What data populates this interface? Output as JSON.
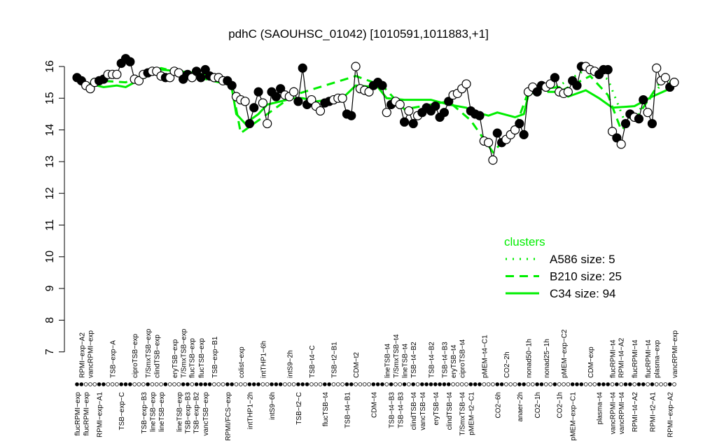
{
  "chart_data": {
    "type": "line",
    "title": "pdhC (SAOUHSC_01042) [1010591,1011883,+1]",
    "xlabel": "",
    "ylabel": "",
    "ylim": [
      7,
      16
    ],
    "yticks": [
      7,
      8,
      9,
      10,
      11,
      12,
      13,
      14,
      15,
      16
    ],
    "grid": false,
    "points": [
      [
        15.65,
        1
      ],
      [
        15.55,
        1
      ],
      [
        15.4,
        0
      ],
      [
        15.3,
        0
      ],
      [
        15.5,
        0
      ],
      [
        15.55,
        1
      ],
      [
        15.6,
        1
      ],
      [
        15.75,
        0
      ],
      [
        15.75,
        0
      ],
      [
        15.75,
        0
      ],
      [
        16.1,
        1
      ],
      [
        16.25,
        1
      ],
      [
        16.15,
        1
      ],
      [
        15.6,
        0
      ],
      [
        15.55,
        0
      ],
      [
        15.75,
        0
      ],
      [
        15.8,
        1
      ],
      [
        15.85,
        0
      ],
      [
        15.85,
        0
      ],
      [
        15.7,
        0
      ],
      [
        15.65,
        1
      ],
      [
        15.65,
        0
      ],
      [
        15.85,
        0
      ],
      [
        15.8,
        0
      ],
      [
        15.6,
        1
      ],
      [
        15.75,
        1
      ],
      [
        15.65,
        0
      ],
      [
        15.85,
        1
      ],
      [
        15.65,
        1
      ],
      [
        15.9,
        1
      ],
      [
        15.7,
        1
      ],
      [
        15.65,
        0
      ],
      [
        15.65,
        0
      ],
      [
        15.55,
        0
      ],
      [
        15.55,
        1
      ],
      [
        15.4,
        1
      ],
      [
        15.05,
        0
      ],
      [
        14.95,
        0
      ],
      [
        14.9,
        0
      ],
      [
        14.2,
        1
      ],
      [
        14.7,
        1
      ],
      [
        15.2,
        1
      ],
      [
        14.85,
        0
      ],
      [
        14.2,
        0
      ],
      [
        15.2,
        1
      ],
      [
        15.05,
        1
      ],
      [
        15.3,
        1
      ],
      [
        15.1,
        0
      ],
      [
        15.05,
        0
      ],
      [
        15.2,
        0
      ],
      [
        14.9,
        1
      ],
      [
        15.95,
        1
      ],
      [
        14.8,
        1
      ],
      [
        14.95,
        0
      ],
      [
        14.75,
        0
      ],
      [
        14.6,
        0
      ],
      [
        14.85,
        1
      ],
      [
        14.9,
        1
      ],
      [
        14.95,
        0
      ],
      [
        15.0,
        0
      ],
      [
        15.0,
        0
      ],
      [
        14.5,
        1
      ],
      [
        14.45,
        1
      ],
      [
        16.0,
        0
      ],
      [
        15.3,
        0
      ],
      [
        15.25,
        0
      ],
      [
        15.2,
        0
      ],
      [
        15.4,
        1
      ],
      [
        15.5,
        1
      ],
      [
        15.4,
        1
      ],
      [
        14.55,
        0
      ],
      [
        14.8,
        1
      ],
      [
        14.9,
        0
      ],
      [
        14.8,
        0
      ],
      [
        14.25,
        1
      ],
      [
        14.6,
        0
      ],
      [
        14.2,
        1
      ],
      [
        14.45,
        0
      ],
      [
        14.55,
        1
      ],
      [
        14.7,
        1
      ],
      [
        14.6,
        1
      ],
      [
        14.75,
        1
      ],
      [
        14.4,
        1
      ],
      [
        14.55,
        1
      ],
      [
        14.9,
        1
      ],
      [
        15.1,
        0
      ],
      [
        15.15,
        0
      ],
      [
        15.3,
        0
      ],
      [
        15.45,
        0
      ],
      [
        14.6,
        1
      ],
      [
        14.5,
        1
      ],
      [
        14.45,
        1
      ],
      [
        13.65,
        0
      ],
      [
        13.6,
        0
      ],
      [
        13.05,
        0
      ],
      [
        13.9,
        1
      ],
      [
        13.6,
        1
      ],
      [
        13.7,
        0
      ],
      [
        13.85,
        0
      ],
      [
        14.0,
        0
      ],
      [
        14.2,
        1
      ],
      [
        13.85,
        1
      ],
      [
        15.2,
        0
      ],
      [
        15.35,
        0
      ],
      [
        15.2,
        1
      ],
      [
        15.4,
        1
      ],
      [
        15.35,
        0
      ],
      [
        15.45,
        0
      ],
      [
        15.65,
        1
      ],
      [
        15.2,
        0
      ],
      [
        15.15,
        0
      ],
      [
        15.2,
        0
      ],
      [
        15.55,
        1
      ],
      [
        15.4,
        1
      ],
      [
        16.0,
        1
      ],
      [
        16.0,
        0
      ],
      [
        15.9,
        0
      ],
      [
        15.85,
        0
      ],
      [
        15.75,
        1
      ],
      [
        15.9,
        1
      ],
      [
        15.9,
        1
      ],
      [
        13.95,
        0
      ],
      [
        13.75,
        1
      ],
      [
        13.55,
        0
      ],
      [
        14.2,
        1
      ],
      [
        14.5,
        1
      ],
      [
        14.4,
        0
      ],
      [
        14.35,
        1
      ],
      [
        14.95,
        1
      ],
      [
        14.55,
        0
      ],
      [
        14.2,
        1
      ],
      [
        15.95,
        0
      ],
      [
        15.55,
        0
      ],
      [
        15.65,
        0
      ],
      [
        15.35,
        1
      ],
      [
        15.5,
        0
      ]
    ],
    "series": [
      {
        "name": "C34 size: 94",
        "style": "solid",
        "x": [
          1,
          7,
          10,
          12,
          14,
          20,
          28,
          34,
          36,
          37,
          39,
          42,
          44,
          50,
          52,
          55,
          61,
          64,
          69,
          71,
          75,
          81,
          85,
          89,
          90,
          94,
          96,
          100,
          102,
          103,
          106,
          110,
          112,
          116,
          119,
          122,
          127,
          131,
          135
        ],
        "values": [
          15.55,
          15.35,
          15.4,
          15.35,
          15.5,
          15.9,
          15.8,
          15.6,
          15.3,
          14.5,
          14.2,
          14.5,
          14.8,
          15.0,
          15.0,
          14.9,
          15.0,
          15.4,
          15.35,
          15.0,
          14.95,
          14.95,
          14.8,
          14.7,
          14.6,
          14.45,
          14.55,
          14.4,
          14.5,
          15.1,
          15.3,
          15.35,
          15.05,
          15.25,
          15.0,
          14.7,
          14.75,
          15.05,
          15.3
        ]
      },
      {
        "name": "B210 size: 25",
        "style": "dashed",
        "x": [
          1,
          12,
          20,
          36,
          38,
          42,
          50,
          64,
          70,
          75,
          85,
          90,
          95,
          100,
          103,
          110,
          117,
          121,
          124,
          128,
          133,
          136
        ],
        "values": [
          15.6,
          15.5,
          15.95,
          15.4,
          13.9,
          14.3,
          15.1,
          15.7,
          15.4,
          14.65,
          14.9,
          14.3,
          13.3,
          14.05,
          15.2,
          15.2,
          15.7,
          15.1,
          14.0,
          14.5,
          15.55,
          15.5
        ]
      },
      {
        "name": "A586 size: 5",
        "style": "dotted",
        "x": [
          103,
          110,
          116,
          121,
          125,
          130,
          134
        ],
        "values": [
          15.3,
          15.4,
          15.9,
          15.6,
          14.2,
          14.9,
          15.6
        ]
      }
    ],
    "legend": {
      "title": "clusters",
      "placement": "right",
      "order": [
        "A586 size: 5",
        "B210 size: 25",
        "C34 size: 94"
      ]
    },
    "xlabels_top": [
      [
        "RPMI−exp−A2",
        2
      ],
      [
        "vancRPMI−exp",
        3
      ],
      [
        "TSB−exp−A",
        9
      ],
      [
        "ciproTSB−exp",
        14
      ],
      [
        "T/SmxTSB−exp",
        17
      ],
      [
        "clindTSB−exp",
        19
      ],
      [
        "eryTSB−exp",
        23
      ],
      [
        "T/SmxTSB−exp",
        25
      ],
      [
        "flucTSB−exp",
        26
      ],
      [
        "flucTSB−exp",
        29
      ],
      [
        "TSB−exp−B1",
        32
      ],
      [
        "colist−exp",
        38
      ],
      [
        "intTHP1−6h",
        43
      ],
      [
        "intS9−2h",
        49
      ],
      [
        "TSB−t4−C",
        54
      ],
      [
        "TSB−t2−B1",
        59
      ],
      [
        "CDM−t2",
        64
      ],
      [
        "lineTSB−t4",
        71
      ],
      [
        "T/SmxTSB−t4",
        73
      ],
      [
        "lineTSB−t4",
        75
      ],
      [
        "TSB−t4−B2",
        77
      ],
      [
        "TSB−t4−B2",
        81
      ],
      [
        "TSB−t4−B3",
        84
      ],
      [
        "eryTSB−t4",
        86
      ],
      [
        "ciproTSB−t4",
        88
      ],
      [
        "pMEM−t4−C1",
        93
      ],
      [
        "CO2−2h",
        98
      ],
      [
        "nonad50−1h",
        103
      ],
      [
        "nonad25−1h",
        107
      ],
      [
        "pMEM−exp−C2",
        111
      ],
      [
        "CDM−exp",
        117
      ],
      [
        "flucRPMI−t4",
        122
      ],
      [
        "RPMI−t4−A2",
        123
      ],
      [
        "flucRPMI−t4",
        127
      ],
      [
        "flucRPMI−t4",
        130
      ],
      [
        "plasma−exp",
        132
      ],
      [
        "vancRPMI−exp",
        136
      ]
    ],
    "xlabels_bottom": [
      [
        "flucRPMI−exp",
        1
      ],
      [
        "flucRPMI−exp",
        3
      ],
      [
        "RPMI−exp−A1",
        6
      ],
      [
        "TSB−exp−C",
        11
      ],
      [
        "TSB−exp−B3",
        16
      ],
      [
        "lineTSB−exp",
        18
      ],
      [
        "lineTSB−exp",
        20
      ],
      [
        "lineTSB−exp",
        24
      ],
      [
        "TSB−exp−B3",
        25
      ],
      [
        "TSB−exp−B2",
        27
      ],
      [
        "vancTSB−exp",
        30
      ],
      [
        "RPMI/FCS−exp",
        35
      ],
      [
        "intTHP1−2h",
        40
      ],
      [
        "intS9−6h",
        45
      ],
      [
        "TSB−t2−C",
        51
      ],
      [
        "flucTSB−t4",
        57
      ],
      [
        "TSB−t4−B1",
        62
      ],
      [
        "CDM−t4",
        68
      ],
      [
        "TSB−t4−B3",
        72
      ],
      [
        "TSB−t4−B3",
        74
      ],
      [
        "clindTSB−t4",
        77
      ],
      [
        "vancTSB−t4",
        79
      ],
      [
        "eryTSB−t4",
        82
      ],
      [
        "clindTSB−t4",
        85
      ],
      [
        "T/SmxTSB−t4",
        88
      ],
      [
        "pMEM−t2−C1",
        90
      ],
      [
        "CO2−6h",
        96
      ],
      [
        "anaer−2h",
        101
      ],
      [
        "CO2−1h",
        105
      ],
      [
        "CO2−1h",
        110
      ],
      [
        "pMEM−exp−C1",
        113
      ],
      [
        "plasma−t4",
        119
      ],
      [
        "vancRPMI−t4",
        122
      ],
      [
        "vancRPMI−t4",
        124
      ],
      [
        "RPMI−t4−A2",
        127
      ],
      [
        "RPMI−t2−A1",
        131
      ],
      [
        "RPMI−exp−A2",
        135
      ]
    ],
    "colors": {
      "cluster_line": "#00ee00",
      "points": "#000000"
    }
  }
}
